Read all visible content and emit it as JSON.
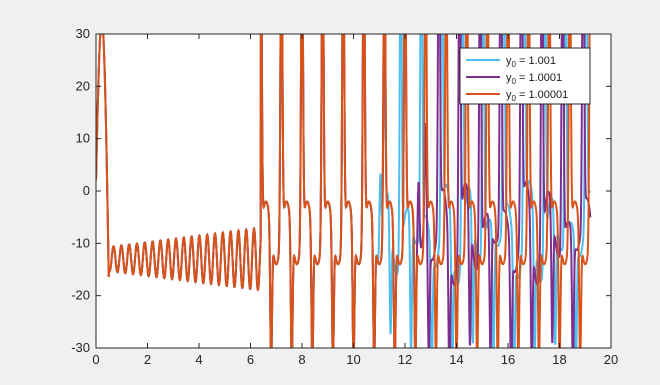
{
  "chart_data": {
    "type": "line",
    "title": "",
    "xlabel": "",
    "ylabel": "",
    "xlim": [
      0,
      20
    ],
    "ylim": [
      -30,
      30
    ],
    "x_ticks": [
      0,
      2,
      4,
      6,
      8,
      10,
      12,
      14,
      16,
      18,
      20
    ],
    "y_ticks": [
      -30,
      -20,
      -10,
      0,
      10,
      20,
      30
    ],
    "grid": false,
    "legend_position": "top-right",
    "series": [
      {
        "legend_base": "y",
        "legend_sub": "0",
        "legend_value": " = 1.001",
        "color": "#4DBEEE",
        "x_end": 19.2,
        "diverge_t": 10.9
      },
      {
        "legend_base": "y",
        "legend_sub": "0",
        "legend_value": " = 1.0001",
        "color": "#7E2F8E",
        "x_end": 19.2,
        "diverge_t": 12.4
      },
      {
        "legend_base": "y",
        "legend_sub": "0",
        "legend_value": " = 1.00001",
        "color": "#D95319",
        "x_end": 19.2,
        "diverge_t": 20.0
      }
    ]
  }
}
